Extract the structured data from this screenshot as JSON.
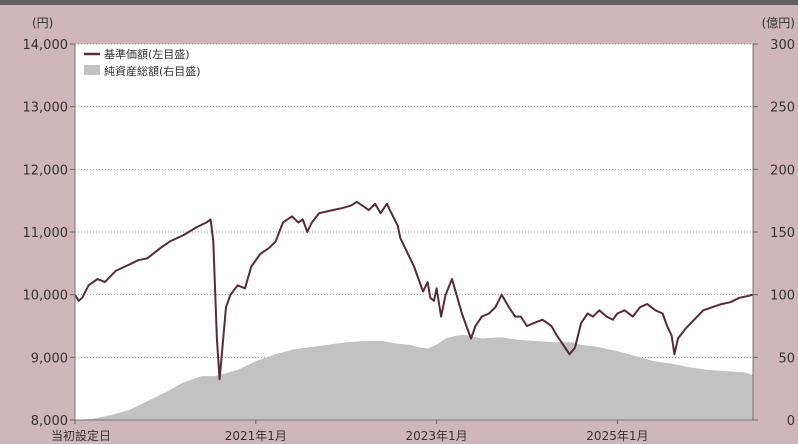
{
  "colors": {
    "background": "#cfb6bb",
    "plot_background": "#ffffff",
    "nav_line": "#5a2a3a",
    "net_assets_area": "#c2c2c2",
    "gridline": "#9a9a9a",
    "text": "#333333",
    "top_bar": "#5f5f5f"
  },
  "chart_data": {
    "type": "line",
    "title": "",
    "left_axis": {
      "unit": "(円)",
      "ylim": [
        8000,
        14000
      ],
      "ticks": [
        {
          "value": 8000,
          "label": "8,000"
        },
        {
          "value": 9000,
          "label": "9,000"
        },
        {
          "value": 10000,
          "label": "10,000"
        },
        {
          "value": 11000,
          "label": "11,000"
        },
        {
          "value": 12000,
          "label": "12,000"
        },
        {
          "value": 13000,
          "label": "13,000"
        },
        {
          "value": 14000,
          "label": "14,000"
        }
      ]
    },
    "right_axis": {
      "unit": "(億円)",
      "ylim": [
        0,
        300
      ],
      "ticks": [
        {
          "value": 0,
          "label": "0"
        },
        {
          "value": 50,
          "label": "50"
        },
        {
          "value": 100,
          "label": "100"
        },
        {
          "value": 150,
          "label": "150"
        },
        {
          "value": 200,
          "label": "200"
        },
        {
          "value": 250,
          "label": "250"
        },
        {
          "value": 300,
          "label": "300"
        }
      ]
    },
    "x_axis": {
      "xlim": [
        2019.0,
        2026.5
      ],
      "ticks": [
        {
          "value": 2019.0,
          "label": "当初設定日"
        },
        {
          "value": 2021.0,
          "label": "2021年1月"
        },
        {
          "value": 2023.0,
          "label": "2023年1月"
        },
        {
          "value": 2025.0,
          "label": "2025年1月"
        }
      ]
    },
    "grid": {
      "horizontal": true,
      "style": "dotted"
    },
    "legend": {
      "position": "top-left",
      "entries": [
        {
          "label": "基準価額(左目盛)",
          "kind": "line"
        },
        {
          "label": "純資産総額(右目盛)",
          "kind": "area"
        }
      ]
    },
    "series": [
      {
        "name": "基準価額(左目盛)",
        "axis": "left",
        "type": "line",
        "points": [
          [
            2019.0,
            10000
          ],
          [
            2019.04,
            9900
          ],
          [
            2019.08,
            9950
          ],
          [
            2019.15,
            10150
          ],
          [
            2019.25,
            10250
          ],
          [
            2019.33,
            10200
          ],
          [
            2019.45,
            10380
          ],
          [
            2019.6,
            10480
          ],
          [
            2019.7,
            10550
          ],
          [
            2019.8,
            10580
          ],
          [
            2019.95,
            10750
          ],
          [
            2020.05,
            10850
          ],
          [
            2020.2,
            10950
          ],
          [
            2020.35,
            11080
          ],
          [
            2020.45,
            11150
          ],
          [
            2020.5,
            11200
          ],
          [
            2020.53,
            10850
          ],
          [
            2020.57,
            9300
          ],
          [
            2020.6,
            8650
          ],
          [
            2020.63,
            9150
          ],
          [
            2020.67,
            9800
          ],
          [
            2020.72,
            10000
          ],
          [
            2020.8,
            10150
          ],
          [
            2020.88,
            10100
          ],
          [
            2020.95,
            10450
          ],
          [
            2021.05,
            10650
          ],
          [
            2021.15,
            10750
          ],
          [
            2021.22,
            10850
          ],
          [
            2021.3,
            11150
          ],
          [
            2021.4,
            11250
          ],
          [
            2021.47,
            11150
          ],
          [
            2021.52,
            11200
          ],
          [
            2021.57,
            11000
          ],
          [
            2021.62,
            11150
          ],
          [
            2021.7,
            11300
          ],
          [
            2021.85,
            11350
          ],
          [
            2021.95,
            11380
          ],
          [
            2022.05,
            11420
          ],
          [
            2022.12,
            11480
          ],
          [
            2022.18,
            11420
          ],
          [
            2022.25,
            11350
          ],
          [
            2022.32,
            11450
          ],
          [
            2022.38,
            11300
          ],
          [
            2022.45,
            11450
          ],
          [
            2022.5,
            11300
          ],
          [
            2022.57,
            11100
          ],
          [
            2022.6,
            10900
          ],
          [
            2022.65,
            10750
          ],
          [
            2022.7,
            10600
          ],
          [
            2022.75,
            10450
          ],
          [
            2022.8,
            10250
          ],
          [
            2022.85,
            10050
          ],
          [
            2022.9,
            10200
          ],
          [
            2022.93,
            9950
          ],
          [
            2022.97,
            9900
          ],
          [
            2023.0,
            10100
          ],
          [
            2023.05,
            9650
          ],
          [
            2023.1,
            10000
          ],
          [
            2023.17,
            10250
          ],
          [
            2023.22,
            10000
          ],
          [
            2023.28,
            9700
          ],
          [
            2023.33,
            9500
          ],
          [
            2023.38,
            9300
          ],
          [
            2023.43,
            9500
          ],
          [
            2023.5,
            9650
          ],
          [
            2023.58,
            9700
          ],
          [
            2023.65,
            9800
          ],
          [
            2023.72,
            10000
          ],
          [
            2023.8,
            9800
          ],
          [
            2023.87,
            9650
          ],
          [
            2023.93,
            9650
          ],
          [
            2024.0,
            9500
          ],
          [
            2024.08,
            9550
          ],
          [
            2024.17,
            9600
          ],
          [
            2024.27,
            9500
          ],
          [
            2024.33,
            9350
          ],
          [
            2024.4,
            9200
          ],
          [
            2024.47,
            9050
          ],
          [
            2024.53,
            9150
          ],
          [
            2024.6,
            9550
          ],
          [
            2024.67,
            9700
          ],
          [
            2024.73,
            9650
          ],
          [
            2024.8,
            9750
          ],
          [
            2024.88,
            9650
          ],
          [
            2024.95,
            9600
          ],
          [
            2025.0,
            9700
          ],
          [
            2025.08,
            9750
          ],
          [
            2025.17,
            9650
          ],
          [
            2025.25,
            9800
          ],
          [
            2025.33,
            9850
          ],
          [
            2025.42,
            9750
          ],
          [
            2025.5,
            9700
          ],
          [
            2025.55,
            9500
          ],
          [
            2025.6,
            9350
          ],
          [
            2025.63,
            9050
          ],
          [
            2025.67,
            9300
          ],
          [
            2025.75,
            9450
          ],
          [
            2025.85,
            9600
          ],
          [
            2025.95,
            9750
          ],
          [
            2026.05,
            9800
          ],
          [
            2026.15,
            9850
          ],
          [
            2026.25,
            9880
          ],
          [
            2026.35,
            9950
          ],
          [
            2026.45,
            9980
          ],
          [
            2026.5,
            10000
          ]
        ]
      },
      {
        "name": "純資産総額(右目盛)",
        "axis": "right",
        "type": "area",
        "points": [
          [
            2019.0,
            0
          ],
          [
            2019.2,
            1
          ],
          [
            2019.4,
            4
          ],
          [
            2019.6,
            8
          ],
          [
            2019.8,
            15
          ],
          [
            2020.0,
            22
          ],
          [
            2020.2,
            30
          ],
          [
            2020.4,
            35
          ],
          [
            2020.55,
            35
          ],
          [
            2020.65,
            37
          ],
          [
            2020.8,
            40
          ],
          [
            2021.0,
            47
          ],
          [
            2021.2,
            52
          ],
          [
            2021.4,
            56
          ],
          [
            2021.6,
            58
          ],
          [
            2021.8,
            60
          ],
          [
            2022.0,
            62
          ],
          [
            2022.2,
            63
          ],
          [
            2022.4,
            63
          ],
          [
            2022.55,
            61
          ],
          [
            2022.7,
            60
          ],
          [
            2022.8,
            58
          ],
          [
            2022.9,
            57
          ],
          [
            2023.0,
            60
          ],
          [
            2023.1,
            65
          ],
          [
            2023.2,
            67
          ],
          [
            2023.3,
            68
          ],
          [
            2023.5,
            65
          ],
          [
            2023.7,
            66
          ],
          [
            2023.9,
            64
          ],
          [
            2024.1,
            63
          ],
          [
            2024.3,
            62
          ],
          [
            2024.5,
            62
          ],
          [
            2024.6,
            60
          ],
          [
            2024.8,
            58
          ],
          [
            2025.0,
            55
          ],
          [
            2025.2,
            51
          ],
          [
            2025.4,
            47
          ],
          [
            2025.6,
            45
          ],
          [
            2025.8,
            42
          ],
          [
            2026.0,
            40
          ],
          [
            2026.2,
            39
          ],
          [
            2026.4,
            38
          ],
          [
            2026.5,
            36
          ]
        ]
      }
    ]
  }
}
